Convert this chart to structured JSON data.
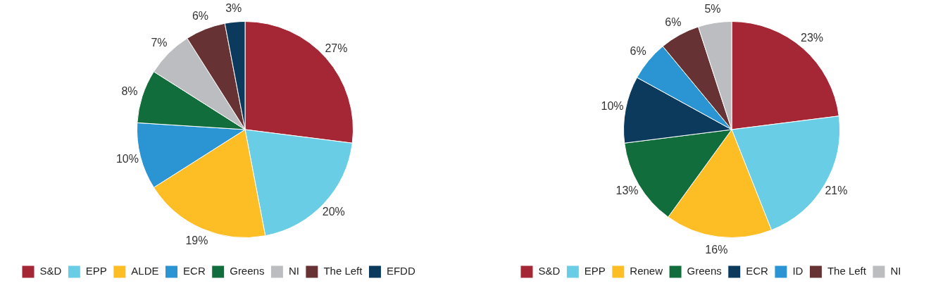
{
  "chart_data": [
    {
      "type": "pie",
      "categories": [
        "S&D",
        "EPP",
        "ALDE",
        "ECR",
        "Greens",
        "NI",
        "The Left",
        "EFDD"
      ],
      "values": [
        27,
        20,
        19,
        10,
        8,
        7,
        6,
        3
      ],
      "colors": [
        "#a52735",
        "#69cde6",
        "#fdbd24",
        "#2b95d4",
        "#126d3c",
        "#bcbdc0",
        "#673233",
        "#0b3a5c"
      ],
      "value_labels": [
        "27%",
        "20%",
        "19%",
        "10%",
        "8%",
        "7%",
        "6%",
        "3%"
      ],
      "legend": "bottom"
    },
    {
      "type": "pie",
      "categories": [
        "S&D",
        "EPP",
        "Renew",
        "Greens",
        "ECR",
        "ID",
        "The Left",
        "NI"
      ],
      "values": [
        23,
        21,
        16,
        13,
        10,
        6,
        6,
        5
      ],
      "colors": [
        "#a52735",
        "#69cde6",
        "#fdbd24",
        "#126d3c",
        "#0b3a5c",
        "#2b95d4",
        "#673233",
        "#bcbdc0"
      ],
      "value_labels": [
        "23%",
        "21%",
        "16%",
        "13%",
        "10%",
        "6%",
        "6%",
        "5%"
      ],
      "legend": "bottom"
    }
  ]
}
